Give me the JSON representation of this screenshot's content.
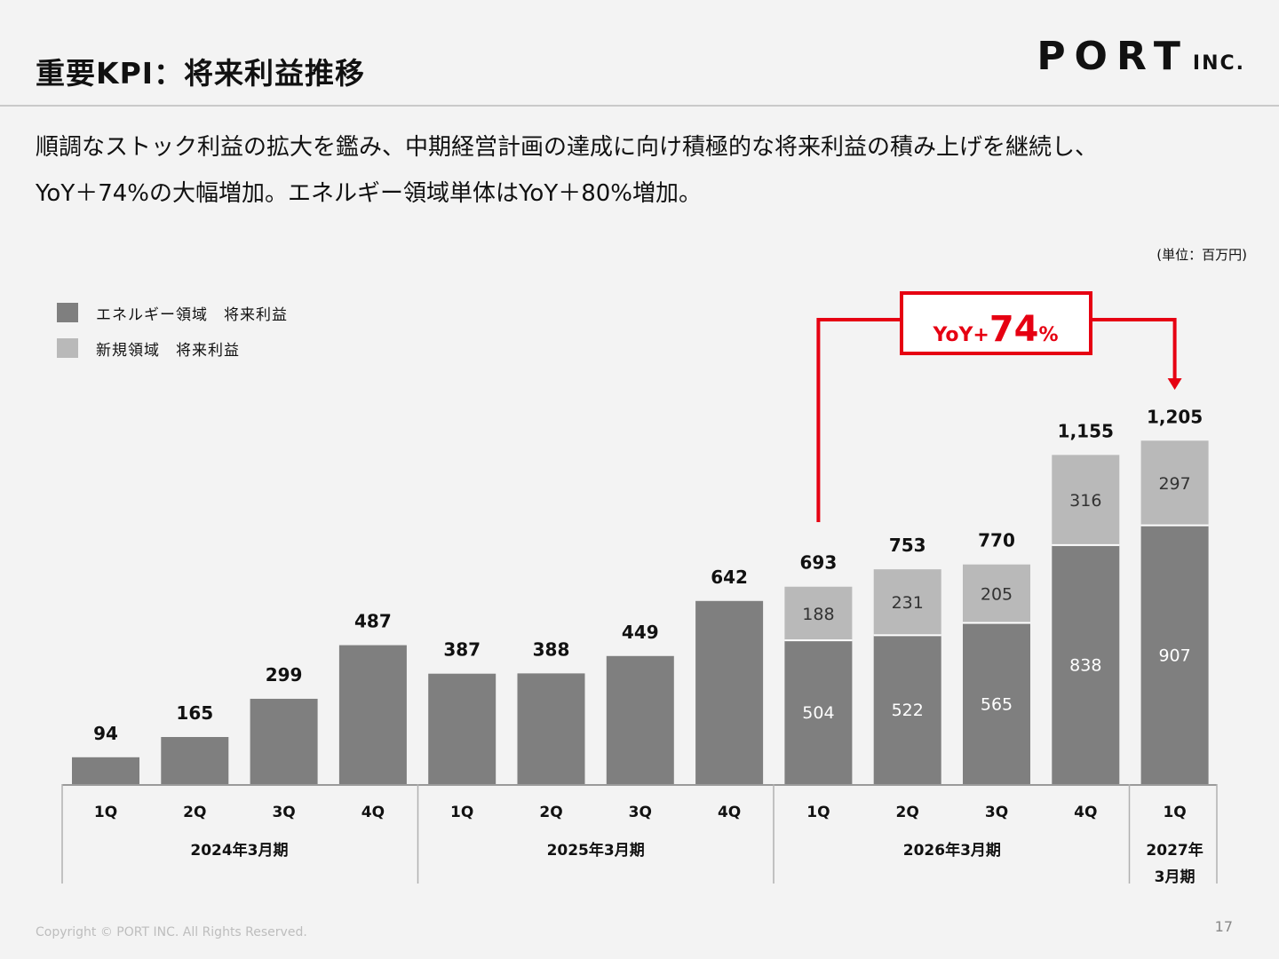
{
  "header": {
    "title": "重要KPI：将来利益推移",
    "logo_main": "PORT",
    "logo_sub": "INC."
  },
  "lead": {
    "line1": "順調なストック利益の拡大を鑑み、中期経営計画の達成に向け積極的な将来利益の積み上げを継続し、",
    "line2": "YoY＋74%の大幅増加。エネルギー領域単体はYoY＋80%増加。"
  },
  "unit_label": "(単位：百万円)",
  "legend": [
    {
      "label": "エネルギー領域　将来利益",
      "color": "#7f7f7f"
    },
    {
      "label": "新規領域　将来利益",
      "color": "#b9b9b9"
    }
  ],
  "yoy_callout": {
    "prefix": "YoY+",
    "value": "74",
    "suffix": "%",
    "color": "#e60012"
  },
  "chart_data": {
    "type": "bar",
    "stacked": true,
    "categories": [
      "1Q",
      "2Q",
      "3Q",
      "4Q",
      "1Q",
      "2Q",
      "3Q",
      "4Q",
      "1Q",
      "2Q",
      "3Q",
      "4Q",
      "1Q"
    ],
    "groups": [
      {
        "label": "2024年3月期",
        "start": 0,
        "end": 3
      },
      {
        "label": "2025年3月期",
        "start": 4,
        "end": 7
      },
      {
        "label": "2026年3月期",
        "start": 8,
        "end": 11
      },
      {
        "label_lines": [
          "2027年",
          "3月期"
        ],
        "start": 12,
        "end": 12
      }
    ],
    "series": [
      {
        "name": "エネルギー領域　将来利益",
        "color": "#7f7f7f",
        "values": [
          94,
          165,
          299,
          487,
          387,
          388,
          449,
          642,
          504,
          522,
          565,
          838,
          907
        ]
      },
      {
        "name": "新規領域　将来利益",
        "color": "#b9b9b9",
        "values": [
          null,
          null,
          null,
          null,
          null,
          null,
          null,
          null,
          188,
          231,
          205,
          316,
          297
        ]
      }
    ],
    "totals": [
      "94",
      "165",
      "299",
      "487",
      "387",
      "388",
      "449",
      "642",
      "693",
      "753",
      "770",
      "1,155",
      "1,205"
    ],
    "ylim": [
      0,
      1300
    ],
    "grid": false,
    "legend_position": "top-left"
  },
  "footer": {
    "copyright": "Copyright © PORT INC. All Rights Reserved.",
    "page": "17"
  }
}
